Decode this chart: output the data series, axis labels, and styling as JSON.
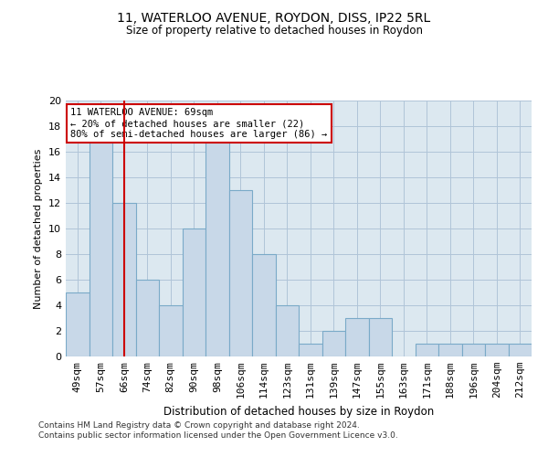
{
  "title1": "11, WATERLOO AVENUE, ROYDON, DISS, IP22 5RL",
  "title2": "Size of property relative to detached houses in Roydon",
  "xlabel": "Distribution of detached houses by size in Roydon",
  "ylabel": "Number of detached properties",
  "categories": [
    "49sqm",
    "57sqm",
    "66sqm",
    "74sqm",
    "82sqm",
    "90sqm",
    "98sqm",
    "106sqm",
    "114sqm",
    "123sqm",
    "131sqm",
    "139sqm",
    "147sqm",
    "155sqm",
    "163sqm",
    "171sqm",
    "188sqm",
    "196sqm",
    "204sqm",
    "212sqm"
  ],
  "values": [
    5,
    17,
    12,
    6,
    4,
    10,
    17,
    13,
    8,
    4,
    1,
    2,
    3,
    3,
    0,
    1,
    1,
    1,
    1,
    1
  ],
  "bar_color": "#c8d8e8",
  "bar_edge_color": "#7aaac8",
  "red_line_index": 2,
  "red_line_color": "#cc0000",
  "ylim": [
    0,
    20
  ],
  "yticks": [
    0,
    2,
    4,
    6,
    8,
    10,
    12,
    14,
    16,
    18,
    20
  ],
  "annotation_box_text": "11 WATERLOO AVENUE: 69sqm\n← 20% of detached houses are smaller (22)\n80% of semi-detached houses are larger (86) →",
  "annotation_box_color": "#cc0000",
  "footer_line1": "Contains HM Land Registry data © Crown copyright and database right 2024.",
  "footer_line2": "Contains public sector information licensed under the Open Government Licence v3.0.",
  "background_color": "#ffffff",
  "grid_color": "#b0c4d8",
  "ax_bg_color": "#dce8f0"
}
